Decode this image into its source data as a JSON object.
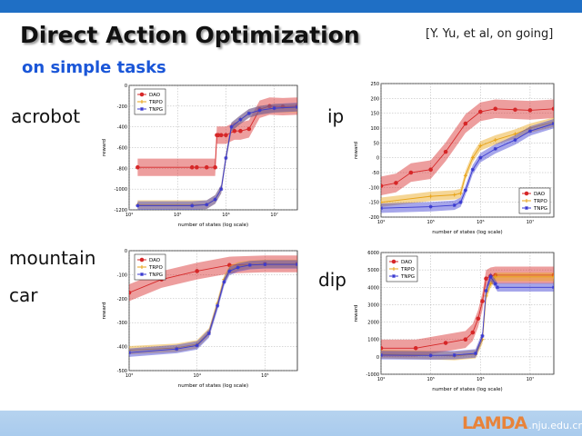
{
  "slide": {
    "title": "Direct Action Optimization",
    "subtitle": "on simple tasks",
    "citation": "[Y. Yu, et al, on going]",
    "task_labels": {
      "acrobot": "acrobot",
      "ip": "ip",
      "mountain": "mountain",
      "car": "car",
      "dip": "dip"
    },
    "logo": {
      "mark": "LAMDA",
      "domain": ".nju.edu.cn"
    },
    "colors": {
      "topbar": "#1f6fc5",
      "bottombar": "#b0cfee",
      "subtitle": "#1a56d8",
      "DAO": "#d62728",
      "TRPO": "#e8a317",
      "TNPG": "#3a3ad0"
    }
  },
  "chart_data": [
    {
      "id": "acrobot",
      "type": "line",
      "xlabel": "number of states (log scale)",
      "ylabel": "reward",
      "xscale": "log",
      "xlim": [
        10000,
        30000000
      ],
      "ylim": [
        -1200,
        0
      ],
      "xticks": [
        10000,
        100000,
        1000000,
        10000000
      ],
      "xtick_labels": [
        "10⁴",
        "10⁵",
        "10⁶",
        "10⁷"
      ],
      "yticks": [
        -1200,
        -1000,
        -800,
        -600,
        -400,
        -200,
        0
      ],
      "grid": true,
      "legend": "top-left",
      "series": [
        {
          "name": "DAO",
          "marker": "o",
          "x": [
            15000,
            200000,
            250000,
            400000,
            600000,
            650000,
            700000,
            800000,
            1000000,
            1500000,
            2000000,
            3000000,
            5000000,
            8000000,
            15000000,
            30000000
          ],
          "y": [
            -790,
            -790,
            -790,
            -790,
            -790,
            -480,
            -480,
            -480,
            -480,
            -440,
            -440,
            -420,
            -230,
            -200,
            -205,
            -200
          ]
        },
        {
          "name": "TRPO",
          "marker": "+",
          "x": [
            15000,
            200000,
            400000,
            600000,
            800000,
            1000000,
            1300000,
            2000000,
            3000000,
            5000000,
            10000000,
            30000000
          ],
          "y": [
            -1150,
            -1150,
            -1150,
            -1100,
            -1000,
            -700,
            -400,
            -330,
            -270,
            -240,
            -220,
            -215
          ]
        },
        {
          "name": "TNPG",
          "marker": "*",
          "x": [
            15000,
            200000,
            400000,
            600000,
            800000,
            1000000,
            1300000,
            2000000,
            3000000,
            5000000,
            10000000,
            30000000
          ],
          "y": [
            -1160,
            -1160,
            -1150,
            -1100,
            -1000,
            -700,
            -400,
            -330,
            -270,
            -240,
            -220,
            -210
          ]
        }
      ]
    },
    {
      "id": "ip",
      "type": "line",
      "xlabel": "number of states (log scale)",
      "ylabel": "reward",
      "xscale": "log",
      "xlim": [
        10000,
        30000000
      ],
      "ylim": [
        -200,
        250
      ],
      "xticks": [
        10000,
        100000,
        1000000,
        10000000
      ],
      "xtick_labels": [
        "10⁴",
        "10⁵",
        "10⁶",
        "10⁷"
      ],
      "yticks": [
        -200,
        -150,
        -100,
        -50,
        0,
        50,
        100,
        150,
        200,
        250
      ],
      "grid": true,
      "legend": "bottom-right",
      "series": [
        {
          "name": "DAO",
          "marker": "o",
          "x": [
            10000,
            20000,
            40000,
            100000,
            200000,
            500000,
            1000000,
            2000000,
            5000000,
            10000000,
            30000000
          ],
          "y": [
            -95,
            -85,
            -50,
            -40,
            20,
            115,
            155,
            165,
            162,
            160,
            165
          ]
        },
        {
          "name": "TRPO",
          "marker": "+",
          "x": [
            10000,
            100000,
            300000,
            400000,
            500000,
            700000,
            1000000,
            2000000,
            5000000,
            10000000,
            30000000
          ],
          "y": [
            -150,
            -130,
            -125,
            -120,
            -60,
            0,
            40,
            60,
            80,
            100,
            120
          ]
        },
        {
          "name": "TNPG",
          "marker": "*",
          "x": [
            10000,
            100000,
            300000,
            400000,
            500000,
            700000,
            1000000,
            2000000,
            5000000,
            10000000,
            30000000
          ],
          "y": [
            -170,
            -165,
            -160,
            -150,
            -110,
            -40,
            0,
            30,
            60,
            90,
            115
          ]
        }
      ]
    },
    {
      "id": "mountain-car",
      "type": "line",
      "xlabel": "number of states (log scale)",
      "ylabel": "reward",
      "xscale": "log",
      "xlim": [
        1000,
        300000
      ],
      "ylim": [
        -500,
        0
      ],
      "xticks": [
        1000,
        10000,
        100000
      ],
      "xtick_labels": [
        "10³",
        "10⁴",
        "10⁵"
      ],
      "yticks": [
        -500,
        -400,
        -300,
        -200,
        -100,
        0
      ],
      "grid": true,
      "legend": "top-left",
      "series": [
        {
          "name": "DAO",
          "marker": "o",
          "x": [
            1000,
            3000,
            10000,
            30000,
            100000,
            300000
          ],
          "y": [
            -175,
            -120,
            -85,
            -60,
            -55,
            -55
          ]
        },
        {
          "name": "TRPO",
          "marker": "+",
          "x": [
            1000,
            5000,
            10000,
            15000,
            20000,
            25000,
            30000,
            40000,
            60000,
            100000,
            300000
          ],
          "y": [
            -415,
            -405,
            -390,
            -340,
            -220,
            -120,
            -80,
            -65,
            -58,
            -55,
            -55
          ]
        },
        {
          "name": "TNPG",
          "marker": "*",
          "x": [
            1000,
            5000,
            10000,
            15000,
            20000,
            25000,
            30000,
            40000,
            60000,
            100000,
            300000
          ],
          "y": [
            -425,
            -410,
            -395,
            -345,
            -230,
            -130,
            -85,
            -70,
            -60,
            -57,
            -57
          ]
        }
      ]
    },
    {
      "id": "dip",
      "type": "line",
      "xlabel": "number of states (log scale)",
      "ylabel": "reward",
      "xscale": "log",
      "xlim": [
        10000,
        30000000
      ],
      "ylim": [
        -1000,
        6000
      ],
      "xticks": [
        10000,
        100000,
        1000000,
        10000000
      ],
      "xtick_labels": [
        "10⁴",
        "10⁵",
        "10⁶",
        "10⁷"
      ],
      "yticks": [
        -1000,
        0,
        1000,
        2000,
        3000,
        4000,
        5000,
        6000
      ],
      "grid": true,
      "legend": "top-left",
      "series": [
        {
          "name": "DAO",
          "marker": "o",
          "x": [
            10000,
            50000,
            200000,
            500000,
            700000,
            900000,
            1100000,
            1300000,
            1600000,
            2000000,
            30000000
          ],
          "y": [
            500,
            500,
            800,
            1000,
            1400,
            2200,
            3200,
            4500,
            4650,
            4700,
            4700
          ]
        },
        {
          "name": "TRPO",
          "marker": "+",
          "x": [
            10000,
            100000,
            300000,
            800000,
            1100000,
            1300000,
            1600000,
            2000000,
            30000000
          ],
          "y": [
            150,
            100,
            50,
            150,
            1000,
            3500,
            4200,
            4600,
            4600
          ]
        },
        {
          "name": "TNPG",
          "marker": "*",
          "x": [
            10000,
            100000,
            300000,
            800000,
            1100000,
            1300000,
            1600000,
            2000000,
            2200000,
            30000000
          ],
          "y": [
            100,
            80,
            100,
            200,
            1200,
            3800,
            4600,
            4200,
            4000,
            4000
          ]
        }
      ]
    }
  ]
}
